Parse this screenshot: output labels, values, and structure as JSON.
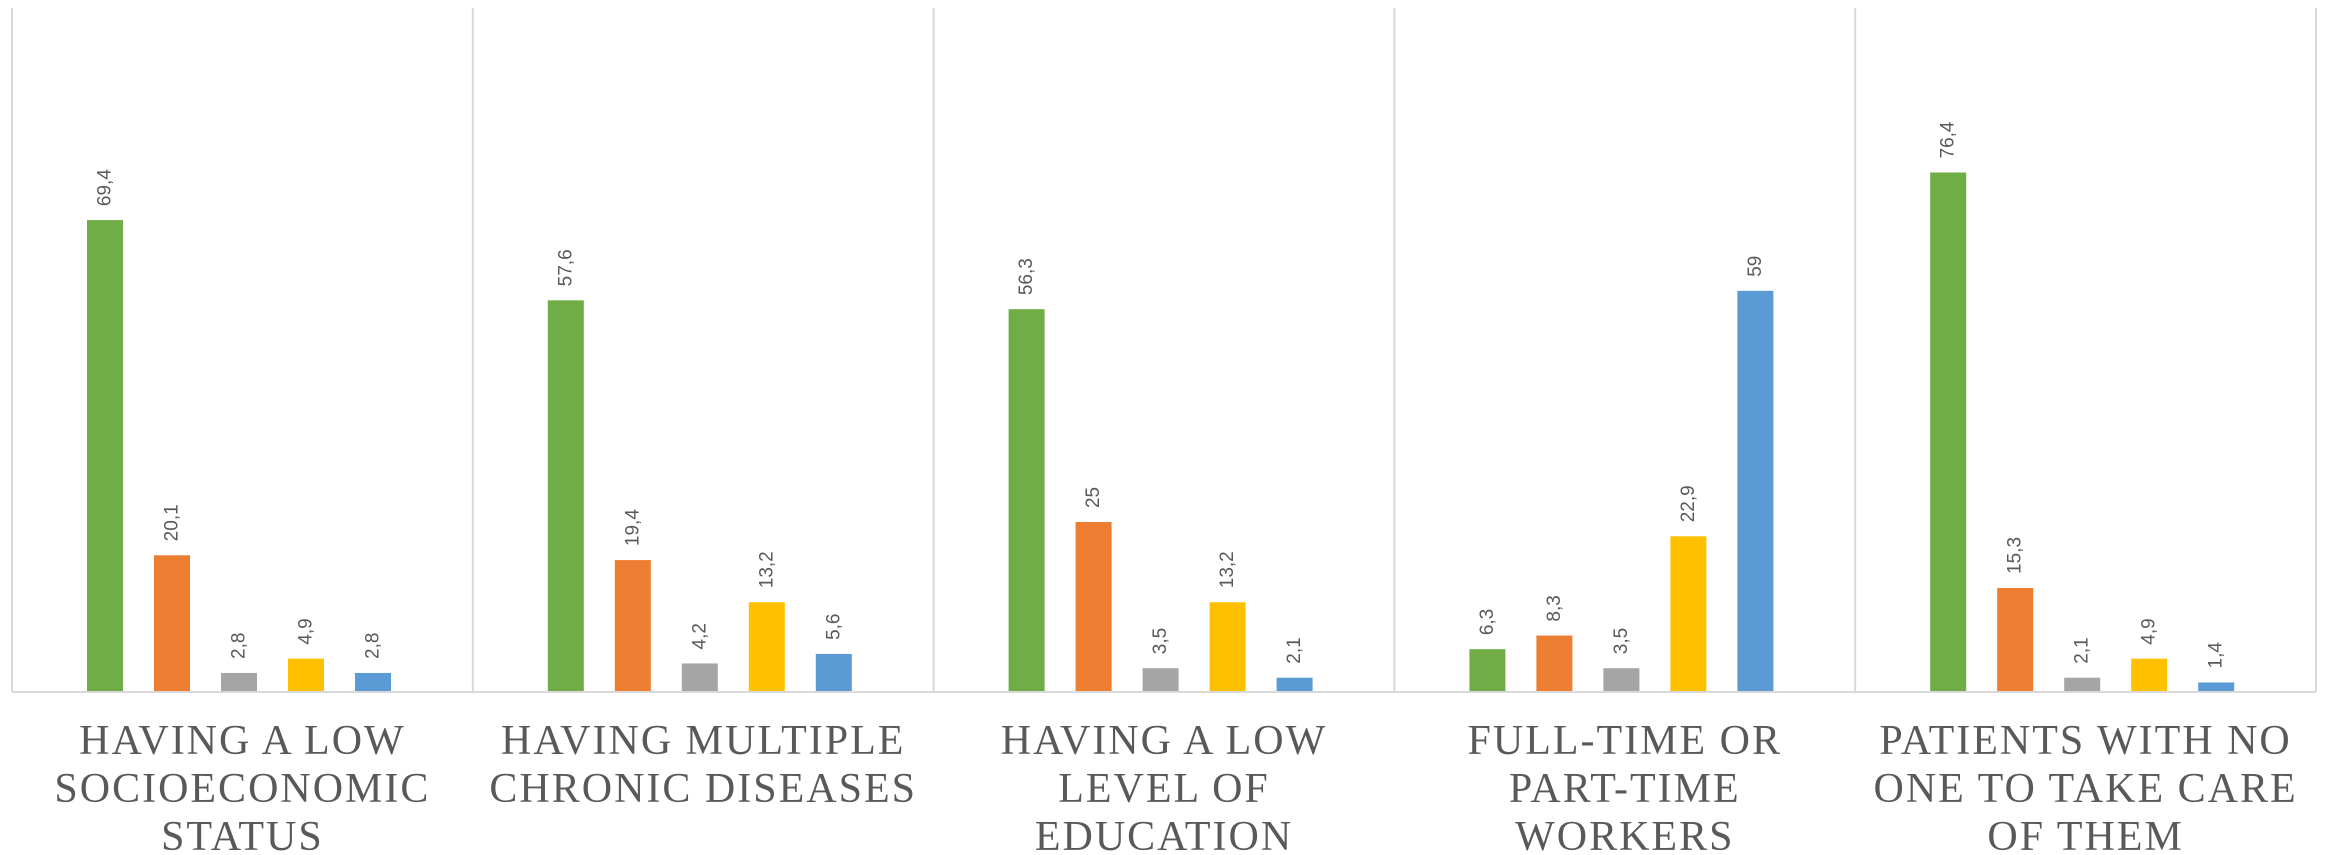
{
  "chart_data": {
    "type": "bar",
    "categories": [
      [
        "HAVING A LOW",
        "SOCIOECONOMIC",
        "STATUS"
      ],
      [
        "HAVING MULTIPLE",
        "CHRONIC DISEASES"
      ],
      [
        "HAVING A LOW",
        "LEVEL OF",
        "EDUCATION"
      ],
      [
        "FULL-TIME OR",
        "PART-TIME",
        "WORKERS"
      ],
      [
        "PATIENTS WITH NO",
        "ONE TO TAKE CARE",
        "OF THEM"
      ]
    ],
    "series": [
      {
        "color": "#70AD47",
        "values": [
          69.4,
          57.6,
          56.3,
          6.3,
          76.4
        ],
        "labels": [
          "69,4",
          "57,6",
          "56,3",
          "6,3",
          "76,4"
        ]
      },
      {
        "color": "#ED7D31",
        "values": [
          20.1,
          19.4,
          25,
          8.3,
          15.3
        ],
        "labels": [
          "20,1",
          "19,4",
          "25",
          "8,3",
          "15,3"
        ]
      },
      {
        "color": "#A5A5A5",
        "values": [
          2.8,
          4.2,
          3.5,
          3.5,
          2.1
        ],
        "labels": [
          "2,8",
          "4,2",
          "3,5",
          "3,5",
          "2,1"
        ]
      },
      {
        "color": "#FFC000",
        "values": [
          4.9,
          13.2,
          13.2,
          22.9,
          4.9
        ],
        "labels": [
          "4,9",
          "13,2",
          "13,2",
          "22,9",
          "4,9"
        ]
      },
      {
        "color": "#5B9BD5",
        "values": [
          2.8,
          5.6,
          2.1,
          59,
          1.4
        ],
        "labels": [
          "2,8",
          "5,6",
          "2,1",
          "59",
          "1,4"
        ]
      }
    ],
    "ylim": [
      0,
      90
    ],
    "grid": false,
    "legend": "none",
    "category_separators": true
  }
}
